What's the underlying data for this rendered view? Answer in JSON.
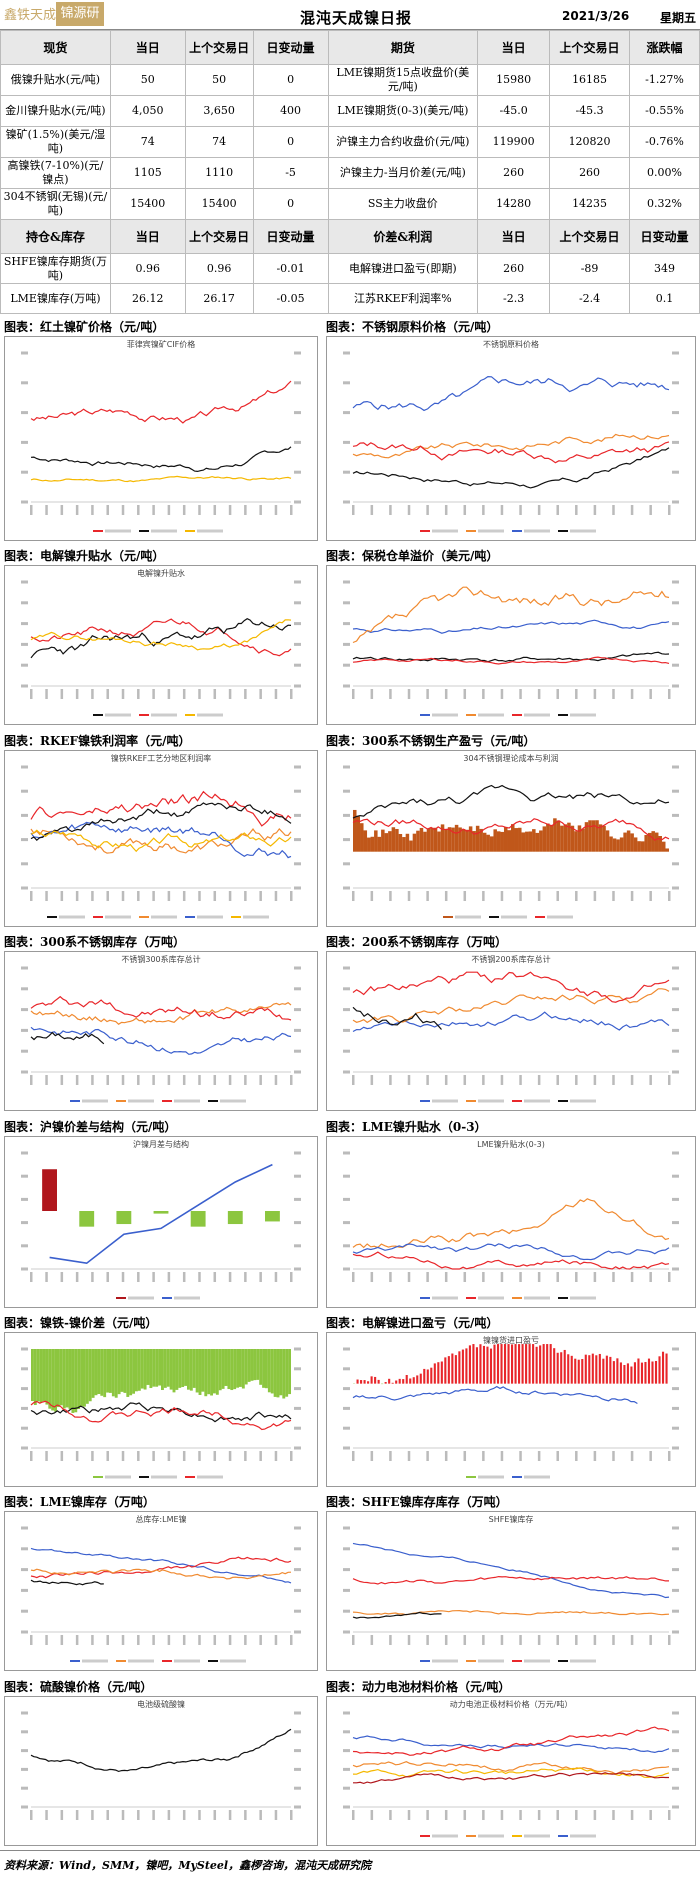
{
  "header": {
    "logo_left": "鑫铁天成",
    "logo_right": "锦源研",
    "title": "混沌天成镍日报",
    "date": "2021/3/26",
    "weekday": "星期五"
  },
  "table1": {
    "headers": [
      "现货",
      "当日",
      "上个交易日",
      "日变动量",
      "期货",
      "当日",
      "上个交易日",
      "涨跌幅"
    ],
    "rows": [
      [
        "俄镍升贴水(元/吨)",
        "50",
        "50",
        "0",
        "LME镍期货15点收盘价(美元/吨)",
        "15980",
        "16185",
        "-1.27%"
      ],
      [
        "金川镍升贴水(元/吨)",
        "4,050",
        "3,650",
        "400",
        "LME镍期货(0-3)(美元/吨)",
        "-45.0",
        "-45.3",
        "-0.55%"
      ],
      [
        "镍矿(1.5%)(美元/湿吨)",
        "74",
        "74",
        "0",
        "沪镍主力合约收盘价(元/吨)",
        "119900",
        "120820",
        "-0.76%"
      ],
      [
        "高镍铁(7-10%)(元/镍点)",
        "1105",
        "1110",
        "-5",
        "沪镍主力-当月价差(元/吨)",
        "260",
        "260",
        "0.00%"
      ],
      [
        "304不锈钢(无锡)(元/吨)",
        "15400",
        "15400",
        "0",
        "SS主力收盘价",
        "14280",
        "14235",
        "0.32%"
      ]
    ]
  },
  "table2": {
    "headers": [
      "持仓&库存",
      "当日",
      "上个交易日",
      "日变动量",
      "价差&利润",
      "当日",
      "上个交易日",
      "日变动量"
    ],
    "rows": [
      [
        "SHFE镍库存期货(万吨)",
        "0.96",
        "0.96",
        "-0.01",
        "电解镍进口盈亏(即期)",
        "260",
        "-89",
        "349"
      ],
      [
        "LME镍库存(万吨)",
        "26.12",
        "26.17",
        "-0.05",
        "江苏RKEF利润率%",
        "-2.3",
        "-2.4",
        "0.1"
      ]
    ]
  },
  "captions": [
    "图表：红土镍矿价格（元/吨）",
    "图表：不锈钢原料价格（元/吨）",
    "图表：电解镍升贴水（元/吨）",
    "图表：保税仓单溢价（美元/吨）",
    "图表：RKEF镍铁利润率（元/吨）",
    "图表：300系不锈钢生产盈亏（元/吨）",
    "图表：300系不锈钢库存（万吨）",
    "图表：200系不锈钢库存（万吨）",
    "图表：沪镍价差与结构（元/吨）",
    "图表：LME镍升贴水（0-3）",
    "图表：镍铁-镍价差（元/吨）",
    "图表：电解镍进口盈亏（元/吨）",
    "图表：LME镍库存（万吨）",
    "图表：SHFE镍库存库存（万吨）",
    "图表：硫酸镍价格（元/吨）",
    "图表：动力电池材料价格（元/吨）"
  ],
  "panel_titles": [
    "菲律宾镍矿CIF价格",
    "不锈钢原料价格",
    "电解镍升贴水",
    "",
    "镍铁RKEF工艺分地区利润率",
    "304不锈钢理论成本与利润",
    "不锈钢300系库存总计",
    "不锈钢200系库存总计",
    "沪镍月差与结构",
    "LME镍升贴水(0-3)",
    "",
    "镍镍货进口盈亏",
    "总库存:LME镍",
    "SHFE镍库存",
    "电池级硫酸镍",
    "动力电池正极材料价格（万元/吨）"
  ],
  "footer": "资料来源：Wind，SMM，镍吧，MySteel，鑫椤咨询，混沌天成研究院",
  "colors": {
    "red": "#e8262a",
    "black": "#111111",
    "yellow": "#f5b800",
    "orange": "#f08a30",
    "blue": "#3a5fcd",
    "green": "#8cc63f",
    "darkred": "#b0161c",
    "brown": "#c0571a"
  }
}
